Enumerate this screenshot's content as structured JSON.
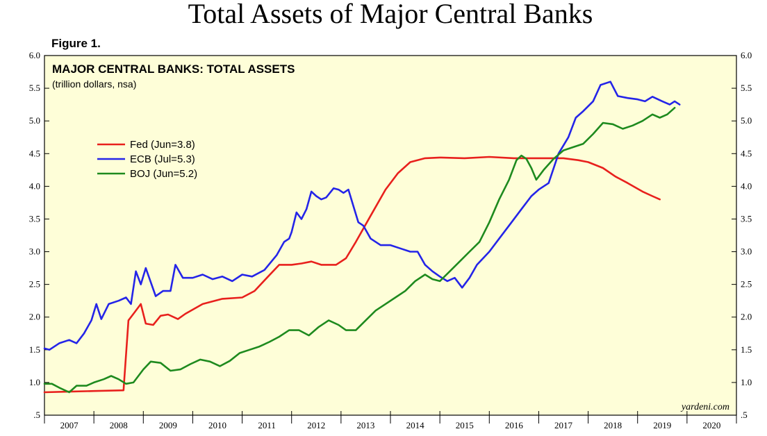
{
  "title": "Total Assets of Major Central Banks",
  "figure_label": "Figure 1.",
  "source": "yardeni.com",
  "colors": {
    "plot_bg": "#fefed8",
    "fed": "#e8201c",
    "ecb": "#2424e8",
    "boj": "#1e8a1e"
  },
  "chart_data": {
    "type": "line",
    "title": "MAJOR CENTRAL BANKS: TOTAL ASSETS",
    "subtitle": "(trillion dollars, nsa)",
    "xlim": [
      2007.0,
      2021.0
    ],
    "ylim": [
      0.5,
      6.0
    ],
    "y_ticks": [
      {
        "value": 6.0,
        "label": "6.0"
      },
      {
        "value": 5.5,
        "label": "5.5"
      },
      {
        "value": 5.0,
        "label": "5.0"
      },
      {
        "value": 4.5,
        "label": "4.5"
      },
      {
        "value": 4.0,
        "label": "4.0"
      },
      {
        "value": 3.5,
        "label": "3.5"
      },
      {
        "value": 3.0,
        "label": "3.0"
      },
      {
        "value": 2.5,
        "label": "2.5"
      },
      {
        "value": 2.0,
        "label": "2.0"
      },
      {
        "value": 1.5,
        "label": "1.5"
      },
      {
        "value": 1.0,
        "label": "1.0"
      },
      {
        "value": 0.5,
        "label": ".5"
      }
    ],
    "x_year_labels": [
      "2007",
      "2008",
      "2009",
      "2010",
      "2011",
      "2012",
      "2013",
      "2014",
      "2015",
      "2016",
      "2017",
      "2018",
      "2019",
      "2020"
    ],
    "legend_position": "upper-left",
    "grid": false,
    "series": [
      {
        "key": "fed",
        "name": "Fed (Jun=3.8)",
        "points": [
          [
            2007.0,
            0.85
          ],
          [
            2007.5,
            0.86
          ],
          [
            2008.0,
            0.87
          ],
          [
            2008.6,
            0.88
          ],
          [
            2008.7,
            1.95
          ],
          [
            2008.8,
            2.05
          ],
          [
            2008.95,
            2.2
          ],
          [
            2009.05,
            1.9
          ],
          [
            2009.2,
            1.88
          ],
          [
            2009.35,
            2.02
          ],
          [
            2009.5,
            2.04
          ],
          [
            2009.7,
            1.97
          ],
          [
            2009.85,
            2.05
          ],
          [
            2010.2,
            2.2
          ],
          [
            2010.6,
            2.28
          ],
          [
            2011.0,
            2.3
          ],
          [
            2011.25,
            2.4
          ],
          [
            2011.5,
            2.6
          ],
          [
            2011.75,
            2.8
          ],
          [
            2012.0,
            2.8
          ],
          [
            2012.2,
            2.82
          ],
          [
            2012.4,
            2.85
          ],
          [
            2012.6,
            2.8
          ],
          [
            2012.9,
            2.8
          ],
          [
            2013.1,
            2.9
          ],
          [
            2013.3,
            3.15
          ],
          [
            2013.6,
            3.55
          ],
          [
            2013.9,
            3.95
          ],
          [
            2014.15,
            4.2
          ],
          [
            2014.4,
            4.37
          ],
          [
            2014.7,
            4.43
          ],
          [
            2015.0,
            4.44
          ],
          [
            2015.5,
            4.43
          ],
          [
            2016.0,
            4.45
          ],
          [
            2016.5,
            4.43
          ],
          [
            2017.0,
            4.43
          ],
          [
            2017.5,
            4.43
          ],
          [
            2017.8,
            4.4
          ],
          [
            2018.0,
            4.37
          ],
          [
            2018.3,
            4.28
          ],
          [
            2018.55,
            4.15
          ],
          [
            2018.8,
            4.05
          ],
          [
            2019.1,
            3.92
          ],
          [
            2019.3,
            3.85
          ],
          [
            2019.45,
            3.8
          ]
        ]
      },
      {
        "key": "ecb",
        "name": "ECB (Jul=5.3)",
        "points": [
          [
            2007.0,
            1.52
          ],
          [
            2007.1,
            1.5
          ],
          [
            2007.3,
            1.6
          ],
          [
            2007.5,
            1.65
          ],
          [
            2007.65,
            1.6
          ],
          [
            2007.8,
            1.75
          ],
          [
            2007.95,
            1.95
          ],
          [
            2008.05,
            2.2
          ],
          [
            2008.15,
            1.97
          ],
          [
            2008.3,
            2.2
          ],
          [
            2008.5,
            2.25
          ],
          [
            2008.65,
            2.3
          ],
          [
            2008.75,
            2.2
          ],
          [
            2008.85,
            2.7
          ],
          [
            2008.95,
            2.5
          ],
          [
            2009.05,
            2.75
          ],
          [
            2009.25,
            2.32
          ],
          [
            2009.4,
            2.4
          ],
          [
            2009.55,
            2.4
          ],
          [
            2009.65,
            2.8
          ],
          [
            2009.8,
            2.6
          ],
          [
            2010.0,
            2.6
          ],
          [
            2010.2,
            2.65
          ],
          [
            2010.4,
            2.58
          ],
          [
            2010.6,
            2.62
          ],
          [
            2010.8,
            2.55
          ],
          [
            2011.0,
            2.65
          ],
          [
            2011.2,
            2.62
          ],
          [
            2011.45,
            2.72
          ],
          [
            2011.7,
            2.95
          ],
          [
            2011.85,
            3.15
          ],
          [
            2011.95,
            3.2
          ],
          [
            2012.0,
            3.3
          ],
          [
            2012.1,
            3.6
          ],
          [
            2012.2,
            3.5
          ],
          [
            2012.3,
            3.65
          ],
          [
            2012.4,
            3.92
          ],
          [
            2012.5,
            3.85
          ],
          [
            2012.6,
            3.8
          ],
          [
            2012.7,
            3.83
          ],
          [
            2012.85,
            3.97
          ],
          [
            2012.95,
            3.95
          ],
          [
            2013.05,
            3.9
          ],
          [
            2013.15,
            3.95
          ],
          [
            2013.25,
            3.7
          ],
          [
            2013.35,
            3.45
          ],
          [
            2013.45,
            3.4
          ],
          [
            2013.6,
            3.2
          ],
          [
            2013.8,
            3.1
          ],
          [
            2014.0,
            3.1
          ],
          [
            2014.2,
            3.05
          ],
          [
            2014.4,
            3.0
          ],
          [
            2014.55,
            3.0
          ],
          [
            2014.7,
            2.8
          ],
          [
            2014.85,
            2.7
          ],
          [
            2015.0,
            2.62
          ],
          [
            2015.15,
            2.55
          ],
          [
            2015.3,
            2.6
          ],
          [
            2015.45,
            2.45
          ],
          [
            2015.6,
            2.6
          ],
          [
            2015.75,
            2.8
          ],
          [
            2016.0,
            3.0
          ],
          [
            2016.2,
            3.2
          ],
          [
            2016.45,
            3.45
          ],
          [
            2016.65,
            3.65
          ],
          [
            2016.85,
            3.85
          ],
          [
            2017.0,
            3.95
          ],
          [
            2017.2,
            4.05
          ],
          [
            2017.4,
            4.5
          ],
          [
            2017.6,
            4.75
          ],
          [
            2017.75,
            5.05
          ],
          [
            2017.9,
            5.15
          ],
          [
            2018.1,
            5.3
          ],
          [
            2018.25,
            5.55
          ],
          [
            2018.45,
            5.6
          ],
          [
            2018.6,
            5.38
          ],
          [
            2018.8,
            5.35
          ],
          [
            2019.0,
            5.33
          ],
          [
            2019.15,
            5.3
          ],
          [
            2019.3,
            5.37
          ],
          [
            2019.5,
            5.3
          ],
          [
            2019.65,
            5.25
          ],
          [
            2019.75,
            5.3
          ],
          [
            2019.85,
            5.25
          ]
        ]
      },
      {
        "key": "boj",
        "name": "BOJ (Jun=5.2)",
        "points": [
          [
            2007.0,
            0.98
          ],
          [
            2007.15,
            0.98
          ],
          [
            2007.3,
            0.92
          ],
          [
            2007.5,
            0.85
          ],
          [
            2007.65,
            0.95
          ],
          [
            2007.85,
            0.95
          ],
          [
            2008.0,
            1.0
          ],
          [
            2008.2,
            1.05
          ],
          [
            2008.35,
            1.1
          ],
          [
            2008.5,
            1.05
          ],
          [
            2008.65,
            0.98
          ],
          [
            2008.8,
            1.0
          ],
          [
            2009.0,
            1.2
          ],
          [
            2009.15,
            1.32
          ],
          [
            2009.35,
            1.3
          ],
          [
            2009.55,
            1.18
          ],
          [
            2009.75,
            1.2
          ],
          [
            2009.95,
            1.28
          ],
          [
            2010.15,
            1.35
          ],
          [
            2010.35,
            1.32
          ],
          [
            2010.55,
            1.25
          ],
          [
            2010.75,
            1.33
          ],
          [
            2010.95,
            1.45
          ],
          [
            2011.15,
            1.5
          ],
          [
            2011.35,
            1.55
          ],
          [
            2011.55,
            1.62
          ],
          [
            2011.75,
            1.7
          ],
          [
            2011.95,
            1.8
          ],
          [
            2012.15,
            1.8
          ],
          [
            2012.35,
            1.72
          ],
          [
            2012.55,
            1.85
          ],
          [
            2012.75,
            1.95
          ],
          [
            2012.95,
            1.88
          ],
          [
            2013.1,
            1.8
          ],
          [
            2013.3,
            1.8
          ],
          [
            2013.5,
            1.95
          ],
          [
            2013.7,
            2.1
          ],
          [
            2013.9,
            2.2
          ],
          [
            2014.1,
            2.3
          ],
          [
            2014.3,
            2.4
          ],
          [
            2014.5,
            2.55
          ],
          [
            2014.7,
            2.65
          ],
          [
            2014.85,
            2.58
          ],
          [
            2015.0,
            2.55
          ],
          [
            2015.2,
            2.7
          ],
          [
            2015.4,
            2.85
          ],
          [
            2015.6,
            3.0
          ],
          [
            2015.8,
            3.15
          ],
          [
            2016.0,
            3.45
          ],
          [
            2016.2,
            3.8
          ],
          [
            2016.4,
            4.1
          ],
          [
            2016.55,
            4.4
          ],
          [
            2016.65,
            4.47
          ],
          [
            2016.75,
            4.42
          ],
          [
            2016.85,
            4.28
          ],
          [
            2016.95,
            4.1
          ],
          [
            2017.1,
            4.25
          ],
          [
            2017.3,
            4.42
          ],
          [
            2017.5,
            4.55
          ],
          [
            2017.7,
            4.6
          ],
          [
            2017.9,
            4.65
          ],
          [
            2018.1,
            4.8
          ],
          [
            2018.3,
            4.97
          ],
          [
            2018.5,
            4.95
          ],
          [
            2018.7,
            4.88
          ],
          [
            2018.9,
            4.93
          ],
          [
            2019.1,
            5.0
          ],
          [
            2019.3,
            5.1
          ],
          [
            2019.45,
            5.05
          ],
          [
            2019.6,
            5.1
          ],
          [
            2019.75,
            5.2
          ]
        ]
      }
    ]
  }
}
